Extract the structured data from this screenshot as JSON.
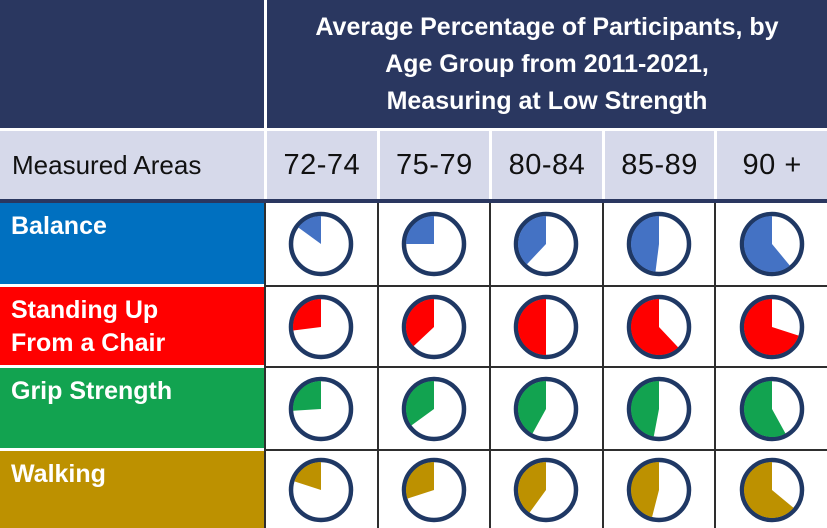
{
  "header": {
    "title_lines": [
      "Average Percentage of Participants, by",
      "Age Group from 2011-2021,",
      "Measuring at Low Strength"
    ],
    "row_header_label": "Measured Areas"
  },
  "colors": {
    "navy_header": "#2A3760",
    "lavender_row": "#D6D9EA",
    "grid_line": "#2E2E2E",
    "pie_outline": "#1F3864",
    "balance_label": "#0070C0",
    "balance_pie": "#4472C4",
    "standing_label": "#FF0000",
    "standing_pie": "#FF0000",
    "grip_label": "#12A350",
    "grip_pie": "#12A350",
    "walking_label": "#BD9100",
    "walking_pie": "#BD9100"
  },
  "chart_data": {
    "type": "pie",
    "title": "Average Percentage of Participants, by Age Group from 2011-2021, Measuring at Low Strength",
    "row_header": "Measured Areas",
    "columns": [
      "72-74",
      "75-79",
      "80-84",
      "85-89",
      "90 +"
    ],
    "value_unit": "percent of participants at low strength (estimated from pie fill)",
    "rows": [
      {
        "label": "Balance",
        "label_lines": [
          "Balance"
        ],
        "label_bg": "#0070C0",
        "pie_fill": "#4472C4",
        "values_pct": [
          15,
          25,
          38,
          48,
          61
        ]
      },
      {
        "label": "Standing Up From a Chair",
        "label_lines": [
          "Standing Up",
          "From a Chair"
        ],
        "label_bg": "#FF0000",
        "pie_fill": "#FF0000",
        "values_pct": [
          27,
          37,
          50,
          62,
          70
        ]
      },
      {
        "label": "Grip Strength",
        "label_lines": [
          "Grip Strength"
        ],
        "label_bg": "#12A350",
        "pie_fill": "#12A350",
        "values_pct": [
          26,
          35,
          42,
          47,
          58
        ]
      },
      {
        "label": "Walking",
        "label_lines": [
          "Walking"
        ],
        "label_bg": "#BD9100",
        "pie_fill": "#BD9100",
        "values_pct": [
          20,
          30,
          40,
          46,
          64
        ]
      }
    ],
    "legend_position": "none",
    "grid": true
  }
}
